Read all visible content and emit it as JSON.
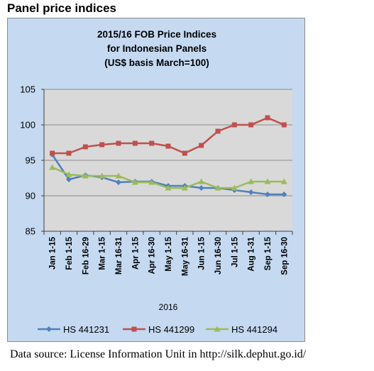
{
  "page": {
    "heading": "Panel price indices",
    "source": "Data source: License Information Unit in http://silk.dephut.go.id/"
  },
  "chart_data": {
    "type": "line",
    "title_lines": [
      "2015/16 FOB Price Indices",
      "for Indonesian Panels",
      "(US$ basis March=100)"
    ],
    "xlabel": "2016",
    "ylabel": "",
    "categories": [
      "Jan 1-15",
      "Feb 1-15",
      "Feb 16-29",
      "Mar 1-15",
      "Mar 16-31",
      "Apr 1-15",
      "Apr 16-30",
      "May 1-15",
      "May 16-31",
      "Jun 1-15",
      "Jun 16-30",
      "Jul 1-15",
      "Aug 1-31",
      "Sep 1-15",
      "Sep 16-30"
    ],
    "ylim": [
      85,
      105
    ],
    "yticks": [
      85,
      90,
      95,
      100,
      105
    ],
    "grid": true,
    "legend_position": "bottom",
    "series": [
      {
        "name": "HS 441231",
        "color": "#4f81bd",
        "marker": "diamond",
        "values": [
          95.8,
          92.3,
          92.9,
          92.6,
          91.9,
          92.0,
          92.0,
          91.4,
          91.4,
          91.1,
          91.1,
          90.8,
          90.5,
          90.2,
          90.2
        ]
      },
      {
        "name": "HS 441299",
        "color": "#c0504d",
        "marker": "square",
        "values": [
          96.0,
          96.0,
          96.9,
          97.2,
          97.4,
          97.4,
          97.4,
          97.0,
          96.0,
          97.1,
          99.1,
          100.0,
          100.0,
          101.0,
          100.0
        ]
      },
      {
        "name": "HS 441294",
        "color": "#9bbb59",
        "marker": "triangle",
        "values": [
          94.0,
          93.0,
          92.8,
          92.8,
          92.8,
          91.9,
          91.9,
          91.1,
          91.1,
          92.0,
          91.1,
          91.1,
          92.0,
          92.0,
          92.0
        ]
      }
    ]
  }
}
